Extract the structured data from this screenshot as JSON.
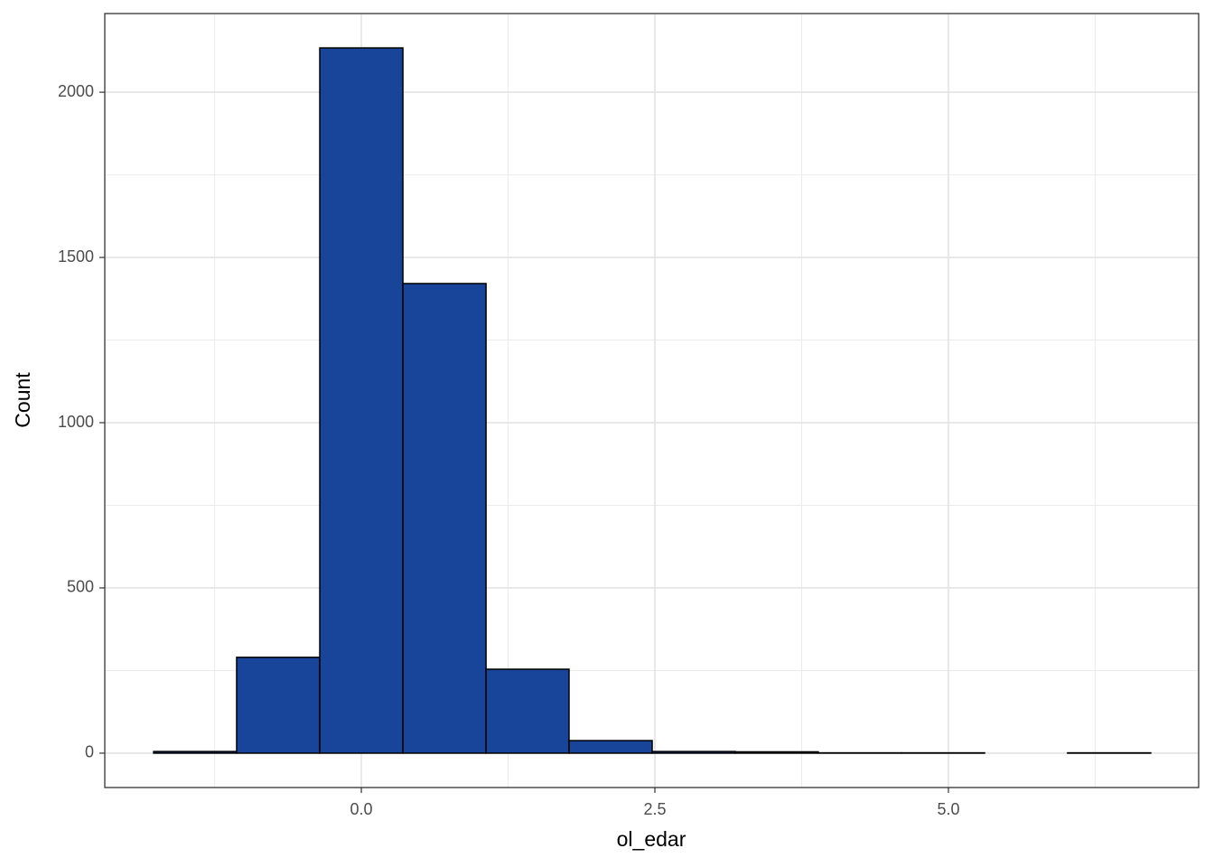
{
  "chart_data": {
    "type": "histogram",
    "x_label": "ol_edar",
    "y_label": "Count",
    "bins": [
      -1.769,
      -1.062,
      -0.354,
      0.354,
      1.062,
      1.769,
      2.477,
      3.185,
      3.892,
      4.6,
      5.308,
      6.015,
      6.723
    ],
    "values": [
      5,
      290,
      2134,
      1421,
      254,
      38,
      5,
      4,
      1,
      1,
      0,
      1
    ],
    "color": "#18449a",
    "edge_color": "#000000",
    "xlim": [
      -2.185,
      7.131
    ],
    "ylim": [
      -104,
      2238
    ],
    "xticks": [
      {
        "value": 0,
        "label": "0.0"
      },
      2.5,
      {
        "value": 5,
        "label": "5.0"
      }
    ],
    "yticks": [
      0,
      500,
      1000,
      1500,
      2000
    ],
    "x_minor_grid": [
      -1.25,
      1.25,
      3.75,
      6.25
    ],
    "y_minor_grid": [
      250,
      750,
      1250,
      1750
    ],
    "grid": true
  }
}
